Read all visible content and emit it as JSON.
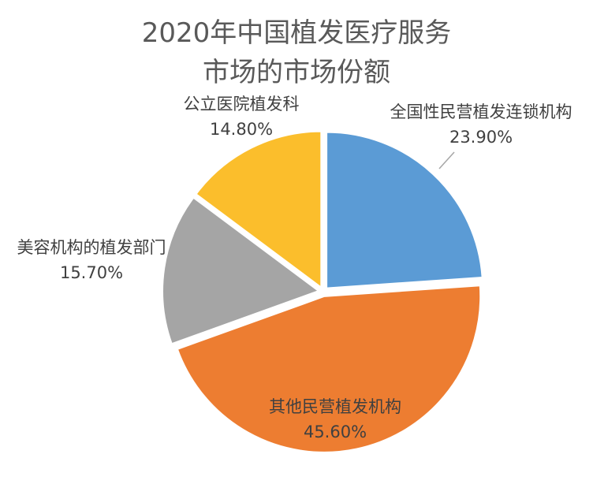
{
  "chart_data": {
    "type": "pie",
    "title": [
      "2020年中国植发医疗服务",
      "市场的市场份额"
    ],
    "slices": [
      {
        "label": "全国性民营植发连锁机构",
        "value": 23.9,
        "display": "23.90%",
        "color": "#5b9bd5"
      },
      {
        "label": "其他民营植发机构",
        "value": 45.6,
        "display": "45.60%",
        "color": "#ed7d31"
      },
      {
        "label": "美容机构的植发部门",
        "value": 15.7,
        "display": "15.70%",
        "color": "#a5a5a5"
      },
      {
        "label": "公立医院植发科",
        "value": 14.8,
        "display": "14.80%",
        "color": "#fbbe2c"
      }
    ],
    "start_angle_deg": 0,
    "direction": "clockwise",
    "legend": "none"
  }
}
